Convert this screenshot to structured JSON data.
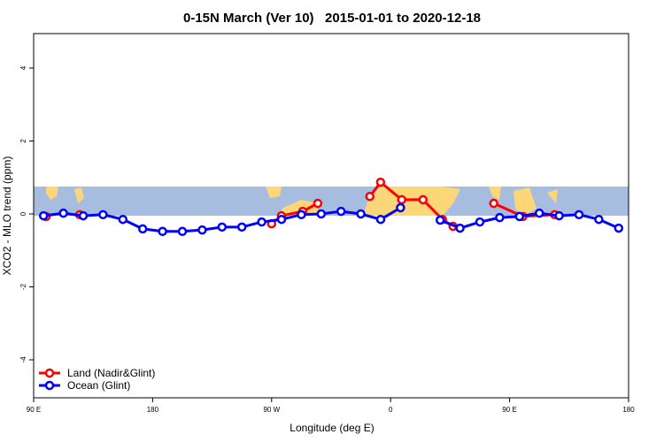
{
  "chart_data": {
    "type": "line",
    "title": "0-15N March (Ver 10)   2015-01-01 to 2020-12-18",
    "x_label": "Longitude (deg E)",
    "y_label": "XCO2 - MLO trend (ppm)",
    "xlim": [
      90,
      540
    ],
    "xticks": [
      {
        "value": 90,
        "label": "90 E"
      },
      180,
      {
        "value": 270,
        "label": "90 W"
      },
      {
        "value": 360,
        "label": "0"
      },
      {
        "value": 450,
        "label": "90 E"
      },
      {
        "value": 540,
        "label": "180"
      }
    ],
    "ylim": [
      -5,
      5
    ],
    "yticks": [
      -4,
      -2,
      0,
      2,
      4
    ],
    "legend": "bottom-left",
    "series": [
      {
        "name": "Land (Nadir&Glint)",
        "color": "#ff0000",
        "x": [
          99.4,
          null,
          124.8,
          null,
          270,
          277.4,
          293.5,
          304.9,
          null,
          344.3,
          352.4,
          368.4,
          384.5,
          399.2,
          407.2,
          null,
          438,
          460,
          484.1
        ],
        "values": [
          -0.07,
          null,
          -0.02,
          null,
          -0.27,
          -0.05,
          0.07,
          0.29,
          null,
          0.48,
          0.87,
          0.39,
          0.39,
          -0.15,
          -0.34,
          null,
          0.29,
          -0.07,
          -0.02
        ]
      },
      {
        "name": "Ocean (Glint)",
        "color": "#0000ff",
        "x": [
          97.5,
          112.5,
          127.5,
          142.5,
          157.5,
          172.5,
          187.5,
          202.5,
          217.5,
          232.5,
          247.5,
          262.5,
          277.5,
          292.5,
          307.5,
          322.5,
          337.5,
          352.5,
          367.5,
          382.5,
          397.5,
          412.5,
          427.5,
          442.5,
          457.5,
          472.5,
          487.5,
          502.5,
          517.5,
          532.5
        ],
        "values": [
          -0.05,
          0.02,
          -0.05,
          -0.02,
          -0.15,
          -0.41,
          -0.48,
          -0.48,
          -0.44,
          -0.36,
          -0.36,
          -0.22,
          -0.15,
          -0.02,
          0,
          0.07,
          0,
          -0.15,
          0.17,
          null,
          -0.17,
          -0.39,
          -0.22,
          -0.1,
          -0.07,
          0.02,
          -0.05,
          -0.02,
          -0.15,
          -0.39
        ]
      }
    ]
  }
}
